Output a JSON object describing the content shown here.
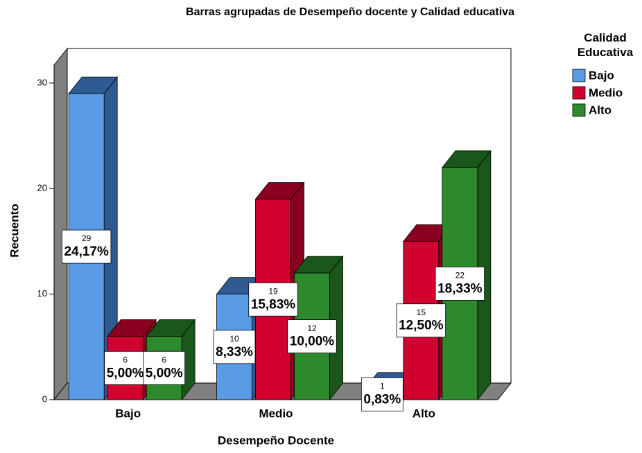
{
  "chart_data": {
    "type": "bar3d",
    "title": "Barras agrupadas de Desempeño docente y Calidad educativa",
    "x_label": "Desempeño Docente",
    "y_label": "Recuento",
    "legend_title": "Calidad Educativa",
    "legend_position": "upper right",
    "categories": [
      "Bajo",
      "Medio",
      "Alto"
    ],
    "series": [
      {
        "name": "Bajo",
        "color": "#5a9be6",
        "side_color": "#305a92",
        "values": [
          29,
          10,
          1
        ],
        "percent_labels": [
          "24,17%",
          "8,33%",
          "0,83%"
        ]
      },
      {
        "name": "Medio",
        "color": "#d2002f",
        "side_color": "#8a0020",
        "values": [
          6,
          19,
          15
        ],
        "percent_labels": [
          "5,00%",
          "15,83%",
          "12,50%"
        ]
      },
      {
        "name": "Alto",
        "color": "#2c8a2c",
        "side_color": "#1b561b",
        "values": [
          6,
          12,
          22
        ],
        "percent_labels": [
          "5,00%",
          "10,00%",
          "18,33%"
        ]
      }
    ],
    "ylim": [
      0,
      31.7
    ],
    "yticks": [
      0,
      10,
      20,
      30
    ],
    "grid": false
  }
}
